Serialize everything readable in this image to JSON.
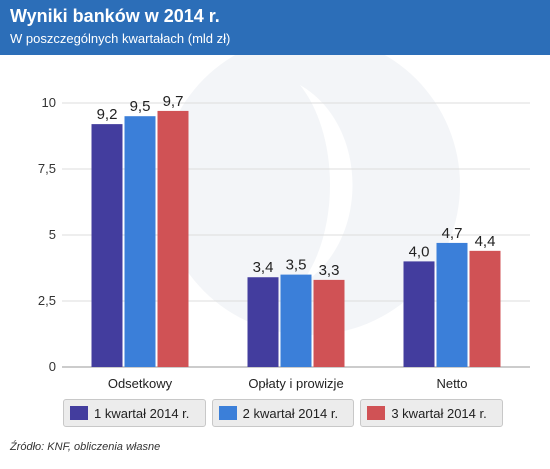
{
  "header": {
    "title": "Wyniki banków w 2014 r.",
    "subtitle": "W poszczególnych kwartałach (mld zł)"
  },
  "source": "Źródło: KNF, obliczenia własne",
  "colors": {
    "header_bg": "#2c6eb8",
    "series": [
      "#433d9e",
      "#3b7fd9",
      "#d05255"
    ]
  },
  "chart_data": {
    "type": "bar",
    "title": "Wyniki banków w 2014 r.",
    "subtitle": "W poszczególnych kwartałach (mld zł)",
    "xlabel": "",
    "ylabel": "",
    "categories": [
      "Odsetkowy",
      "Opłaty i prowizje",
      "Netto"
    ],
    "series": [
      {
        "name": "1 kwartał 2014 r.",
        "values": [
          9.2,
          3.4,
          4.0
        ],
        "labels": [
          "9,2",
          "3,4",
          "4,0"
        ]
      },
      {
        "name": "2 kwartał 2014 r.",
        "values": [
          9.5,
          3.5,
          4.7
        ],
        "labels": [
          "9,5",
          "3,5",
          "4,7"
        ]
      },
      {
        "name": "3 kwartał 2014 r.",
        "values": [
          9.7,
          3.3,
          4.4
        ],
        "labels": [
          "9,7",
          "3,3",
          "4,4"
        ]
      }
    ],
    "ylim": [
      0,
      10
    ],
    "yticks": [
      0,
      2.5,
      5,
      7.5,
      10
    ],
    "ytick_labels": [
      "0",
      "2,5",
      "5",
      "7,5",
      "10"
    ],
    "grid": true,
    "legend_position": "bottom"
  }
}
